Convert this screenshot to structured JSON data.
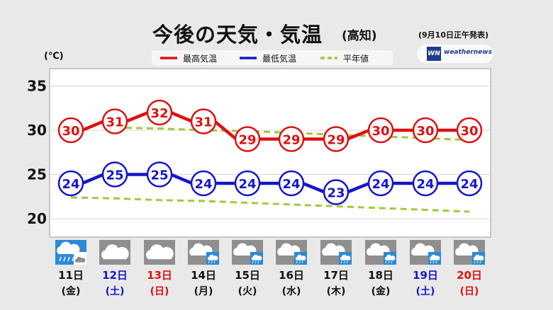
{
  "header": {
    "title": "今後の天気・気温",
    "location": "(高知)",
    "issued": "(9月10日正午発表)",
    "unit": "(℃)",
    "brand": "weathernews",
    "brand_mark": "WN"
  },
  "colors": {
    "high": "#dd1111",
    "low": "#1515cc",
    "normal": "#9ccc3c",
    "blue_day": "#1515cc",
    "red_day": "#dd1111",
    "rain_icon_bg": "#2a8ad8",
    "cloud_icon_bg": "#8f8f8f"
  },
  "chart_data": {
    "type": "line",
    "title": "今後の天気・気温",
    "ylabel": "(℃)",
    "ylim": [
      18,
      37
    ],
    "yticks": [
      20,
      25,
      30,
      35
    ],
    "grid": true,
    "legend_position": "top",
    "categories": [
      "11日",
      "12日",
      "13日",
      "14日",
      "15日",
      "16日",
      "17日",
      "18日",
      "19日",
      "20日"
    ],
    "weekdays": [
      "(金)",
      "(土)",
      "(日)",
      "(月)",
      "(火)",
      "(水)",
      "(木)",
      "(金)",
      "(土)",
      "(日)"
    ],
    "day_colors": [
      "black",
      "blue",
      "red",
      "black",
      "black",
      "black",
      "black",
      "black",
      "blue",
      "red"
    ],
    "weather_icons": [
      "rain-then-cloud-icon",
      "cloud-icon",
      "cloud-icon",
      "cloud-then-rain-icon",
      "cloud-then-rain-icon",
      "cloud-then-rain-icon",
      "cloud-then-rain-icon",
      "cloud-then-rain-icon",
      "cloud-then-rain-icon",
      "cloud-then-rain-icon"
    ],
    "series": [
      {
        "name": "最高気温",
        "values": [
          30,
          31,
          32,
          31,
          29,
          29,
          29,
          30,
          30,
          30
        ]
      },
      {
        "name": "最低気温",
        "values": [
          24,
          25,
          25,
          24,
          24,
          24,
          23,
          24,
          24,
          24
        ]
      },
      {
        "name": "平年値",
        "values": [
          null,
          30.3,
          30.2,
          30.0,
          29.9,
          29.7,
          29.5,
          29.3,
          29.1,
          28.9
        ],
        "style": "dashed"
      },
      {
        "name": "平年値",
        "values": [
          22.4,
          22.3,
          22.1,
          22.0,
          21.8,
          21.6,
          21.4,
          21.2,
          21.0,
          20.8
        ],
        "style": "dashed"
      }
    ]
  }
}
